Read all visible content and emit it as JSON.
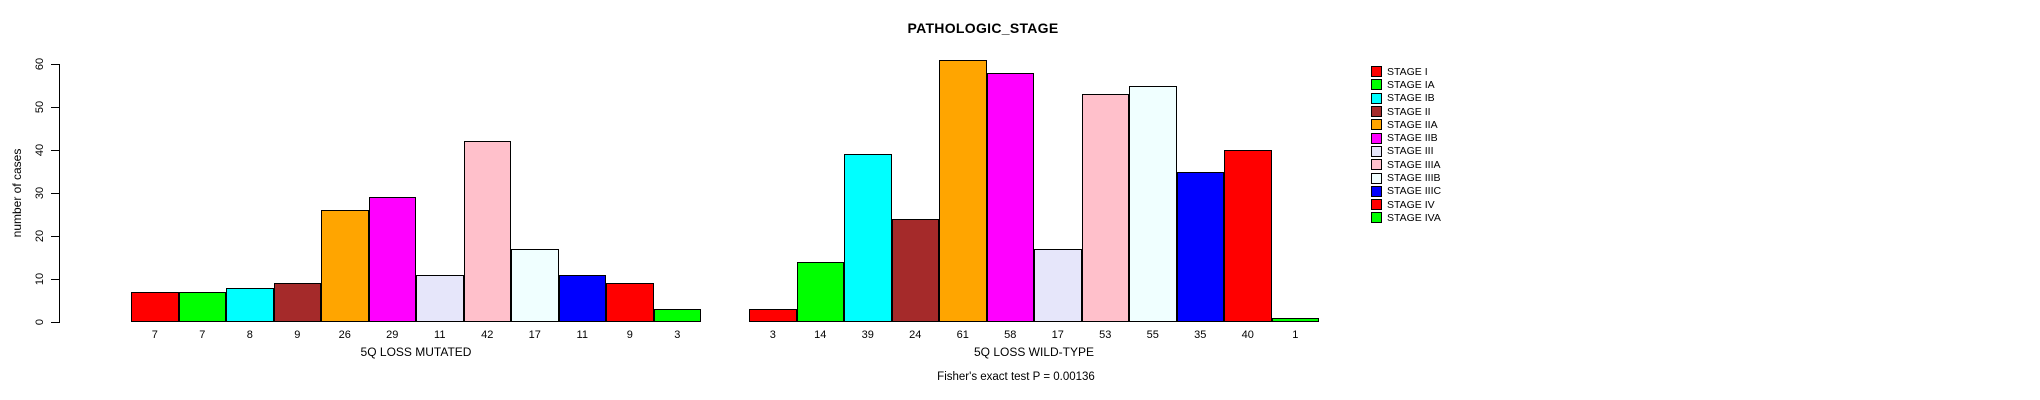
{
  "chart_data": {
    "type": "bar",
    "title": "PATHOLOGIC_STAGE",
    "ylabel": "number of cases",
    "annotation": "Fisher's exact test P = 0.00136",
    "ylim": [
      0,
      61
    ],
    "yticks": [
      0,
      10,
      20,
      30,
      40,
      50,
      60
    ],
    "grid": false,
    "legend_position": "right",
    "categories": [
      "STAGE I",
      "STAGE IA",
      "STAGE IB",
      "STAGE II",
      "STAGE IIA",
      "STAGE IIB",
      "STAGE III",
      "STAGE IIIA",
      "STAGE IIIB",
      "STAGE IIIC",
      "STAGE IV",
      "STAGE IVA"
    ],
    "colors": [
      "#ff0000",
      "#00ff00",
      "#00ffff",
      "#a52a2a",
      "#ffa500",
      "#ff00ff",
      "#e6e6fa",
      "#ffc0cb",
      "#f0ffff",
      "#0000ff",
      "#ff0000",
      "#00ff00"
    ],
    "series": [
      {
        "name": "5Q LOSS MUTATED",
        "values": [
          7,
          7,
          8,
          9,
          26,
          29,
          11,
          42,
          17,
          11,
          9,
          3
        ]
      },
      {
        "name": "5Q LOSS WILD-TYPE",
        "values": [
          3,
          14,
          39,
          24,
          61,
          58,
          17,
          53,
          55,
          35,
          40,
          1
        ]
      }
    ],
    "bar_value_labels_shown": true
  }
}
